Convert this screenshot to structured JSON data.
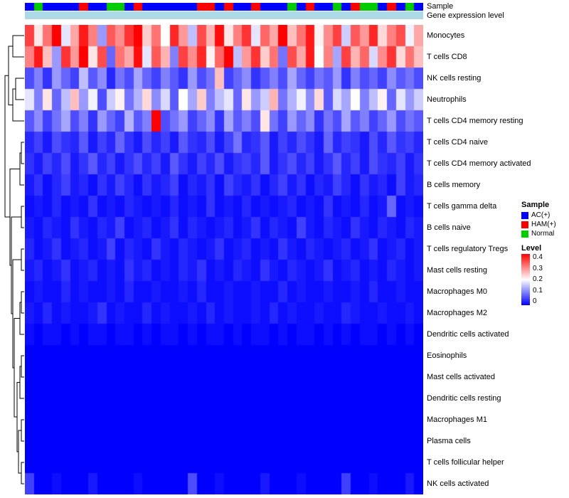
{
  "annotations": {
    "sample_label": "Sample",
    "gene_label": "Gene expression level",
    "gene_color": "#ADD8E6"
  },
  "legend": {
    "sample": {
      "title": "Sample",
      "items": [
        {
          "label": "AC(+)",
          "color": "#0000FF"
        },
        {
          "label": "HAM(+)",
          "color": "#FF0000"
        },
        {
          "label": "Normal",
          "color": "#00CC00"
        }
      ]
    },
    "level": {
      "title": "Level",
      "ticks": [
        "0.4",
        "0.3",
        "0.2",
        "0.1",
        "0"
      ],
      "colors": [
        "#FF0000",
        "#FFFFFF",
        "#0000FF"
      ],
      "min": 0,
      "max": 0.4
    }
  },
  "chart_data": {
    "type": "heatmap",
    "title": "",
    "colormap": {
      "low": "#0000FF",
      "mid": "#FFFFFF",
      "high": "#FF0000",
      "midpoint": 0.2,
      "min": 0,
      "max": 0.4
    },
    "rows": [
      "Monocytes",
      "T cells CD8",
      "NK cells resting",
      "Neutrophils",
      "T cells CD4 memory resting",
      "T cells CD4 naive",
      "T cells CD4 memory activated",
      "B cells memory",
      "T cells gamma delta",
      "B cells naive",
      "T cells regulatory  Tregs",
      "Mast cells resting",
      "Macrophages M0",
      "Macrophages M2",
      "Dendritic cells activated",
      "Eosinophils",
      "Mast cells activated",
      "Dendritic cells resting",
      "Macrophages M1",
      "Plasma cells",
      "T cells follicular helper",
      "NK cells activated"
    ],
    "sample_groups": [
      "AC(+)",
      "Normal",
      "AC(+)",
      "AC(+)",
      "AC(+)",
      "AC(+)",
      "HAM(+)",
      "AC(+)",
      "AC(+)",
      "Normal",
      "Normal",
      "AC(+)",
      "HAM(+)",
      "AC(+)",
      "AC(+)",
      "AC(+)",
      "AC(+)",
      "AC(+)",
      "AC(+)",
      "HAM(+)",
      "HAM(+)",
      "AC(+)",
      "HAM(+)",
      "AC(+)",
      "AC(+)",
      "HAM(+)",
      "AC(+)",
      "AC(+)",
      "AC(+)",
      "Normal",
      "AC(+)",
      "HAM(+)",
      "AC(+)",
      "AC(+)",
      "Normal",
      "AC(+)",
      "HAM(+)",
      "Normal",
      "Normal",
      "AC(+)",
      "HAM(+)",
      "AC(+)",
      "Normal",
      "AC(+)"
    ],
    "values": [
      [
        0.35,
        0.22,
        0.31,
        0.4,
        0.18,
        0.27,
        0.38,
        0.3,
        0.12,
        0.33,
        0.29,
        0.36,
        0.4,
        0.24,
        0.31,
        0.2,
        0.37,
        0.28,
        0.15,
        0.34,
        0.26,
        0.39,
        0.22,
        0.3,
        0.36,
        0.18,
        0.32,
        0.27,
        0.4,
        0.25,
        0.31,
        0.38,
        0.21,
        0.29,
        0.35,
        0.16,
        0.33,
        0.28,
        0.37,
        0.23,
        0.3,
        0.34,
        0.19,
        0.27
      ],
      [
        0.3,
        0.38,
        0.25,
        0.12,
        0.36,
        0.28,
        0.4,
        0.22,
        0.34,
        0.08,
        0.31,
        0.27,
        0.39,
        0.18,
        0.33,
        0.26,
        0.1,
        0.35,
        0.29,
        0.37,
        0.21,
        0.32,
        0.4,
        0.15,
        0.28,
        0.36,
        0.24,
        0.31,
        0.09,
        0.34,
        0.27,
        0.38,
        0.2,
        0.3,
        0.13,
        0.35,
        0.26,
        0.32,
        0.17,
        0.29,
        0.36,
        0.23,
        0.31,
        0.25
      ],
      [
        0.06,
        0.1,
        0.04,
        0.12,
        0.08,
        0.05,
        0.15,
        0.07,
        0.11,
        0.03,
        0.09,
        0.06,
        0.13,
        0.08,
        0.05,
        0.1,
        0.07,
        0.04,
        0.12,
        0.06,
        0.09,
        0.25,
        0.05,
        0.08,
        0.11,
        0.04,
        0.07,
        0.1,
        0.06,
        0.13,
        0.08,
        0.05,
        0.09,
        0.07,
        0.12,
        0.04,
        0.1,
        0.06,
        0.08,
        0.05,
        0.11,
        0.07,
        0.09,
        0.06
      ],
      [
        0.18,
        0.1,
        0.22,
        0.08,
        0.15,
        0.25,
        0.12,
        0.19,
        0.06,
        0.16,
        0.21,
        0.09,
        0.14,
        0.23,
        0.11,
        0.17,
        0.07,
        0.2,
        0.13,
        0.24,
        0.1,
        0.15,
        0.18,
        0.08,
        0.22,
        0.12,
        0.16,
        0.26,
        0.09,
        0.14,
        0.19,
        0.11,
        0.23,
        0.07,
        0.17,
        0.13,
        0.2,
        0.1,
        0.15,
        0.21,
        0.08,
        0.18,
        0.12,
        0.16
      ],
      [
        0.07,
        0.11,
        0.05,
        0.09,
        0.13,
        0.06,
        0.1,
        0.04,
        0.12,
        0.08,
        0.05,
        0.14,
        0.07,
        0.1,
        0.4,
        0.06,
        0.09,
        0.12,
        0.05,
        0.08,
        0.11,
        0.04,
        0.13,
        0.07,
        0.1,
        0.06,
        0.22,
        0.09,
        0.05,
        0.12,
        0.08,
        0.11,
        0.04,
        0.09,
        0.06,
        0.13,
        0.07,
        0.1,
        0.05,
        0.08,
        0.12,
        0.06,
        0.09,
        0.07
      ],
      [
        0.03,
        0.05,
        0.02,
        0.06,
        0.04,
        0.03,
        0.07,
        0.02,
        0.05,
        0.03,
        0.08,
        0.04,
        0.02,
        0.06,
        0.03,
        0.05,
        0.02,
        0.07,
        0.04,
        0.03,
        0.06,
        0.02,
        0.05,
        0.09,
        0.03,
        0.04,
        0.07,
        0.02,
        0.05,
        0.03,
        0.06,
        0.04,
        0.02,
        0.08,
        0.03,
        0.05,
        0.04,
        0.02,
        0.06,
        0.03,
        0.07,
        0.04,
        0.05,
        0.03
      ],
      [
        0.04,
        0.02,
        0.05,
        0.03,
        0.06,
        0.02,
        0.04,
        0.07,
        0.03,
        0.05,
        0.02,
        0.04,
        0.06,
        0.03,
        0.05,
        0.02,
        0.07,
        0.04,
        0.02,
        0.05,
        0.03,
        0.06,
        0.02,
        0.04,
        0.05,
        0.03,
        0.07,
        0.02,
        0.04,
        0.06,
        0.03,
        0.05,
        0.02,
        0.04,
        0.07,
        0.03,
        0.05,
        0.02,
        0.06,
        0.04,
        0.03,
        0.05,
        0.02,
        0.04
      ],
      [
        0.02,
        0.04,
        0.01,
        0.03,
        0.05,
        0.02,
        0.03,
        0.01,
        0.04,
        0.02,
        0.05,
        0.03,
        0.01,
        0.04,
        0.02,
        0.03,
        0.05,
        0.01,
        0.03,
        0.02,
        0.04,
        0.01,
        0.05,
        0.03,
        0.02,
        0.04,
        0.01,
        0.03,
        0.05,
        0.02,
        0.04,
        0.01,
        0.03,
        0.02,
        0.05,
        0.03,
        0.01,
        0.04,
        0.02,
        0.03,
        0.01,
        0.05,
        0.02,
        0.03
      ],
      [
        0.01,
        0.02,
        0.01,
        0.03,
        0.01,
        0.02,
        0.01,
        0.04,
        0.01,
        0.02,
        0.01,
        0.03,
        0.02,
        0.01,
        0.02,
        0.01,
        0.03,
        0.01,
        0.02,
        0.01,
        0.04,
        0.01,
        0.02,
        0.01,
        0.03,
        0.01,
        0.02,
        0.01,
        0.02,
        0.03,
        0.01,
        0.02,
        0.01,
        0.04,
        0.01,
        0.02,
        0.01,
        0.03,
        0.01,
        0.02,
        0.08,
        0.01,
        0.02,
        0.01
      ],
      [
        0.02,
        0.01,
        0.03,
        0.02,
        0.01,
        0.04,
        0.02,
        0.01,
        0.03,
        0.02,
        0.05,
        0.01,
        0.02,
        0.03,
        0.01,
        0.02,
        0.04,
        0.01,
        0.03,
        0.02,
        0.01,
        0.02,
        0.03,
        0.01,
        0.02,
        0.04,
        0.01,
        0.03,
        0.02,
        0.01,
        0.05,
        0.02,
        0.01,
        0.03,
        0.02,
        0.01,
        0.04,
        0.02,
        0.01,
        0.03,
        0.02,
        0.01,
        0.03,
        0.02
      ],
      [
        0.03,
        0.01,
        0.02,
        0.04,
        0.01,
        0.02,
        0.03,
        0.01,
        0.02,
        0.05,
        0.01,
        0.03,
        0.02,
        0.01,
        0.04,
        0.02,
        0.01,
        0.03,
        0.02,
        0.01,
        0.02,
        0.04,
        0.01,
        0.02,
        0.03,
        0.01,
        0.02,
        0.01,
        0.04,
        0.02,
        0.01,
        0.03,
        0.02,
        0.01,
        0.02,
        0.03,
        0.01,
        0.02,
        0.04,
        0.01,
        0.02,
        0.03,
        0.01,
        0.02
      ],
      [
        0.02,
        0.03,
        0.01,
        0.02,
        0.04,
        0.01,
        0.02,
        0.03,
        0.01,
        0.02,
        0.01,
        0.04,
        0.02,
        0.03,
        0.01,
        0.02,
        0.01,
        0.03,
        0.02,
        0.04,
        0.01,
        0.02,
        0.01,
        0.03,
        0.02,
        0.01,
        0.04,
        0.02,
        0.01,
        0.03,
        0.02,
        0.01,
        0.02,
        0.04,
        0.01,
        0.02,
        0.03,
        0.01,
        0.02,
        0.01,
        0.03,
        0.02,
        0.01,
        0.02
      ],
      [
        0.01,
        0.02,
        0.01,
        0.01,
        0.03,
        0.01,
        0.02,
        0.01,
        0.01,
        0.02,
        0.01,
        0.03,
        0.01,
        0.01,
        0.02,
        0.01,
        0.01,
        0.02,
        0.01,
        0.03,
        0.01,
        0.01,
        0.02,
        0.01,
        0.01,
        0.02,
        0.01,
        0.01,
        0.03,
        0.01,
        0.02,
        0.01,
        0.01,
        0.02,
        0.01,
        0.01,
        0.02,
        0.01,
        0.03,
        0.01,
        0.01,
        0.02,
        0.01,
        0.01
      ],
      [
        0.02,
        0.01,
        0.03,
        0.01,
        0.02,
        0.01,
        0.01,
        0.02,
        0.04,
        0.01,
        0.02,
        0.01,
        0.01,
        0.03,
        0.01,
        0.02,
        0.01,
        0.01,
        0.02,
        0.01,
        0.03,
        0.01,
        0.02,
        0.01,
        0.01,
        0.02,
        0.01,
        0.03,
        0.01,
        0.02,
        0.01,
        0.01,
        0.02,
        0.01,
        0.01,
        0.03,
        0.02,
        0.01,
        0.01,
        0.02,
        0.01,
        0.01,
        0.02,
        0.01
      ],
      [
        0.01,
        0,
        0.01,
        0.01,
        0,
        0.01,
        0,
        0.01,
        0.01,
        0,
        0.01,
        0.01,
        0,
        0.01,
        0,
        0.01,
        0.01,
        0,
        0.01,
        0,
        0.01,
        0.01,
        0,
        0.01,
        0,
        0.01,
        0.01,
        0,
        0.01,
        0,
        0.01,
        0.01,
        0,
        0.01,
        0,
        0.01,
        0,
        0.01,
        0.01,
        0,
        0.01,
        0,
        0.01,
        0
      ],
      [
        0,
        0,
        0,
        0,
        0,
        0,
        0,
        0,
        0,
        0,
        0,
        0,
        0,
        0,
        0,
        0,
        0,
        0,
        0,
        0,
        0,
        0,
        0,
        0,
        0,
        0,
        0,
        0,
        0,
        0,
        0,
        0,
        0,
        0,
        0,
        0,
        0,
        0,
        0,
        0,
        0,
        0,
        0,
        0
      ],
      [
        0,
        0,
        0,
        0,
        0,
        0,
        0,
        0,
        0,
        0,
        0,
        0,
        0,
        0,
        0,
        0,
        0,
        0,
        0,
        0,
        0,
        0,
        0,
        0,
        0,
        0,
        0,
        0,
        0,
        0,
        0,
        0,
        0,
        0,
        0,
        0,
        0,
        0,
        0,
        0,
        0,
        0,
        0,
        0
      ],
      [
        0,
        0,
        0,
        0,
        0,
        0,
        0,
        0,
        0,
        0,
        0,
        0,
        0,
        0,
        0,
        0,
        0,
        0,
        0,
        0,
        0,
        0,
        0,
        0,
        0,
        0,
        0,
        0,
        0,
        0,
        0,
        0,
        0,
        0,
        0,
        0,
        0,
        0,
        0,
        0,
        0,
        0,
        0,
        0
      ],
      [
        0,
        0,
        0,
        0,
        0,
        0,
        0,
        0,
        0,
        0,
        0,
        0,
        0,
        0,
        0,
        0,
        0,
        0,
        0,
        0,
        0,
        0,
        0,
        0,
        0,
        0,
        0,
        0,
        0,
        0,
        0,
        0,
        0,
        0,
        0,
        0,
        0,
        0,
        0,
        0,
        0,
        0,
        0,
        0
      ],
      [
        0,
        0,
        0,
        0,
        0,
        0,
        0,
        0,
        0,
        0,
        0,
        0,
        0,
        0,
        0,
        0,
        0,
        0,
        0,
        0,
        0,
        0,
        0,
        0,
        0,
        0,
        0,
        0,
        0,
        0,
        0,
        0,
        0,
        0,
        0,
        0,
        0,
        0,
        0,
        0,
        0,
        0,
        0,
        0
      ],
      [
        0,
        0,
        0,
        0,
        0,
        0,
        0,
        0,
        0,
        0,
        0,
        0,
        0,
        0,
        0,
        0,
        0,
        0,
        0,
        0,
        0,
        0,
        0,
        0,
        0,
        0,
        0,
        0,
        0,
        0,
        0,
        0,
        0,
        0,
        0,
        0,
        0,
        0,
        0,
        0,
        0,
        0,
        0,
        0
      ],
      [
        0.05,
        0,
        0,
        0.01,
        0,
        0,
        0,
        0.02,
        0,
        0,
        0,
        0,
        0.01,
        0,
        0,
        0,
        0,
        0,
        0.06,
        0,
        0,
        0.01,
        0,
        0,
        0,
        0,
        0.02,
        0,
        0,
        0,
        0.01,
        0,
        0,
        0,
        0,
        0.05,
        0,
        0,
        0.01,
        0,
        0,
        0,
        0.02,
        0
      ]
    ]
  }
}
